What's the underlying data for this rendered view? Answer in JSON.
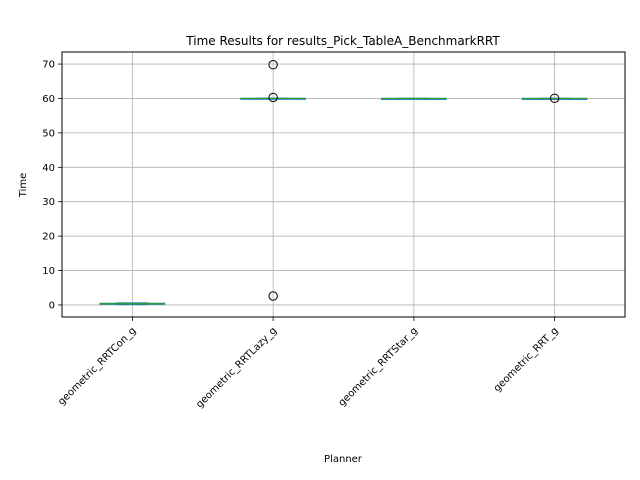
{
  "chart_data": {
    "type": "box",
    "title": "Time Results for results_Pick_TableA_BenchmarkRRT",
    "xlabel": "Planner",
    "ylabel": "Time",
    "ylim": [
      -3.5,
      73.5
    ],
    "yticks": [
      0,
      10,
      20,
      30,
      40,
      50,
      60,
      70
    ],
    "grid": true,
    "categories": [
      "geometric_RRTCon_g",
      "geometric_RRTLazy_g",
      "geometric_RRTStar_g",
      "geometric_RRT_g"
    ],
    "boxes": [
      {
        "whisker_low": 0.1,
        "q1": 0.2,
        "median": 0.35,
        "q3": 0.5,
        "whisker_high": 0.6,
        "outliers": []
      },
      {
        "whisker_low": 59.9,
        "q1": 59.95,
        "median": 60.0,
        "q3": 60.05,
        "whisker_high": 60.1,
        "outliers": [
          69.8,
          60.3,
          2.6
        ]
      },
      {
        "whisker_low": 59.95,
        "q1": 59.98,
        "median": 60.0,
        "q3": 60.02,
        "whisker_high": 60.05,
        "outliers": []
      },
      {
        "whisker_low": 59.95,
        "q1": 59.98,
        "median": 60.0,
        "q3": 60.02,
        "whisker_high": 60.05,
        "outliers": [
          60.05
        ]
      }
    ],
    "colors": {
      "box": "#1f77b4",
      "median": "#2ca02c",
      "grid": "#b0b0b0",
      "axis": "#000000"
    }
  }
}
